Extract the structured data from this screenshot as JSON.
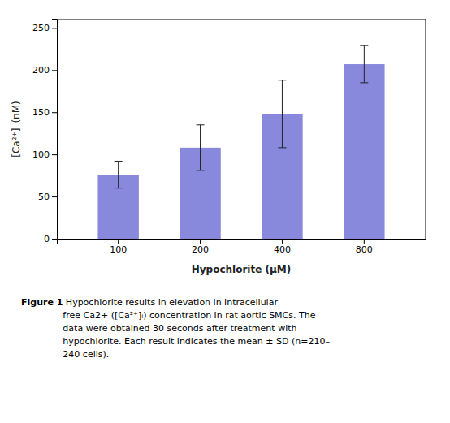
{
  "chart_data": {
    "type": "bar",
    "categories": [
      "100",
      "200",
      "400",
      "800"
    ],
    "values": [
      76,
      108,
      148,
      207
    ],
    "errors": [
      16,
      27,
      40,
      22
    ],
    "color": "#8888DD",
    "x_label": "Hypochlorite (μM)",
    "y_label": "[Ca²⁺]ᵢ (nM)",
    "ylim": [
      0,
      260
    ],
    "yticks": [
      0,
      50,
      100,
      150,
      200,
      250
    ],
    "annotations": [
      "Figure 1",
      " Hypochlorite results in elevation in intracellular\nfree Ca2+ ([Ca²⁺]ᵢ) concentration in rat aortic SMCs. The\ndata were obtained 30 seconds after treatment with\nhypochlorite. Each result indicates the mean ± SD (n=210–\n240 cells)."
    ]
  }
}
